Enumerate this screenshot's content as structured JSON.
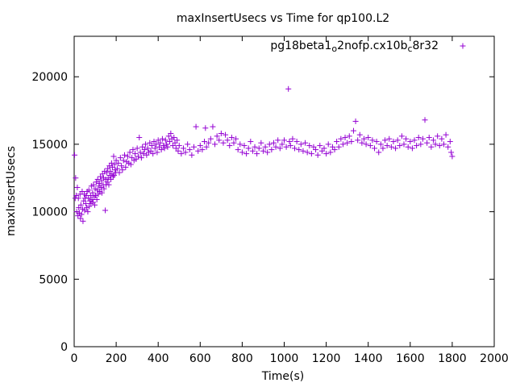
{
  "chart_data": {
    "type": "scatter",
    "title": "maxInsertUsecs vs Time for qp100.L2",
    "xlabel": "Time(s)",
    "ylabel": "maxInsertUsecs",
    "xlim": [
      0,
      2000
    ],
    "ylim": [
      0,
      23000
    ],
    "x_ticks": [
      0,
      200,
      400,
      600,
      800,
      1000,
      1200,
      1400,
      1600,
      1800,
      2000
    ],
    "y_ticks": [
      0,
      5000,
      10000,
      15000,
      20000
    ],
    "grid": false,
    "legend_position": "top-right",
    "marker": "plus",
    "colors": {
      "series": "#9400d3",
      "axis": "#000000"
    },
    "series": [
      {
        "name": "pg18beta1_o2nofp.cx10b_c8r32",
        "legend_parts": [
          {
            "text": "pg18beta1",
            "sub": false
          },
          {
            "text": "o",
            "sub": true
          },
          {
            "text": "2nofp.cx10b",
            "sub": false
          },
          {
            "text": "c",
            "sub": true
          },
          {
            "text": "8r32",
            "sub": false
          }
        ],
        "points": [
          [
            2,
            14200
          ],
          [
            5,
            11000
          ],
          [
            7,
            12500
          ],
          [
            10,
            11200
          ],
          [
            12,
            10000
          ],
          [
            15,
            11800
          ],
          [
            18,
            9700
          ],
          [
            20,
            11000
          ],
          [
            22,
            10300
          ],
          [
            25,
            9900
          ],
          [
            28,
            11300
          ],
          [
            30,
            9500
          ],
          [
            32,
            10500
          ],
          [
            35,
            9800
          ],
          [
            38,
            11500
          ],
          [
            40,
            10200
          ],
          [
            42,
            9300
          ],
          [
            45,
            10800
          ],
          [
            48,
            11300
          ],
          [
            50,
            10100
          ],
          [
            52,
            11000
          ],
          [
            55,
            10600
          ],
          [
            58,
            11200
          ],
          [
            60,
            10300
          ],
          [
            62,
            11500
          ],
          [
            65,
            10000
          ],
          [
            68,
            11000
          ],
          [
            70,
            11600
          ],
          [
            72,
            10400
          ],
          [
            75,
            10800
          ],
          [
            78,
            11200
          ],
          [
            80,
            10600
          ],
          [
            82,
            11900
          ],
          [
            85,
            10900
          ],
          [
            88,
            11400
          ],
          [
            90,
            10700
          ],
          [
            92,
            12000
          ],
          [
            95,
            11100
          ],
          [
            98,
            10500
          ],
          [
            100,
            11700
          ],
          [
            102,
            11200
          ],
          [
            105,
            12200
          ],
          [
            108,
            10900
          ],
          [
            110,
            11600
          ],
          [
            112,
            12400
          ],
          [
            115,
            11300
          ],
          [
            118,
            11900
          ],
          [
            120,
            12100
          ],
          [
            122,
            11500
          ],
          [
            125,
            12600
          ],
          [
            128,
            11800
          ],
          [
            130,
            12300
          ],
          [
            132,
            11400
          ],
          [
            135,
            12800
          ],
          [
            138,
            12000
          ],
          [
            140,
            12500
          ],
          [
            142,
            11700
          ],
          [
            145,
            13000
          ],
          [
            148,
            10100
          ],
          [
            150,
            12400
          ],
          [
            152,
            12000
          ],
          [
            155,
            12900
          ],
          [
            158,
            12200
          ],
          [
            160,
            13200
          ],
          [
            162,
            12500
          ],
          [
            165,
            12000
          ],
          [
            168,
            13400
          ],
          [
            170,
            12700
          ],
          [
            172,
            13000
          ],
          [
            175,
            12400
          ],
          [
            178,
            13600
          ],
          [
            180,
            12800
          ],
          [
            182,
            13300
          ],
          [
            185,
            12600
          ],
          [
            188,
            14100
          ],
          [
            190,
            12700
          ],
          [
            192,
            13500
          ],
          [
            195,
            13100
          ],
          [
            198,
            12900
          ],
          [
            200,
            13800
          ],
          [
            205,
            13200
          ],
          [
            210,
            13600
          ],
          [
            215,
            12900
          ],
          [
            220,
            14000
          ],
          [
            225,
            13400
          ],
          [
            230,
            13100
          ],
          [
            235,
            13800
          ],
          [
            240,
            14200
          ],
          [
            245,
            13300
          ],
          [
            250,
            13700
          ],
          [
            255,
            14100
          ],
          [
            260,
            13600
          ],
          [
            265,
            14400
          ],
          [
            270,
            13500
          ],
          [
            275,
            14000
          ],
          [
            280,
            14600
          ],
          [
            285,
            13800
          ],
          [
            290,
            14300
          ],
          [
            295,
            13900
          ],
          [
            300,
            14700
          ],
          [
            305,
            14100
          ],
          [
            310,
            15500
          ],
          [
            315,
            14400
          ],
          [
            320,
            14000
          ],
          [
            325,
            14800
          ],
          [
            330,
            14300
          ],
          [
            335,
            14600
          ],
          [
            340,
            15000
          ],
          [
            345,
            14200
          ],
          [
            350,
            14700
          ],
          [
            355,
            14400
          ],
          [
            360,
            15100
          ],
          [
            365,
            14500
          ],
          [
            370,
            14900
          ],
          [
            375,
            14300
          ],
          [
            380,
            15200
          ],
          [
            385,
            14700
          ],
          [
            390,
            15000
          ],
          [
            395,
            14400
          ],
          [
            400,
            15300
          ],
          [
            405,
            14800
          ],
          [
            410,
            15100
          ],
          [
            415,
            14600
          ],
          [
            420,
            15400
          ],
          [
            425,
            14900
          ],
          [
            430,
            14700
          ],
          [
            435,
            15300
          ],
          [
            440,
            15000
          ],
          [
            445,
            14800
          ],
          [
            450,
            15600
          ],
          [
            455,
            15200
          ],
          [
            460,
            15800
          ],
          [
            465,
            15400
          ],
          [
            470,
            14900
          ],
          [
            475,
            15500
          ],
          [
            480,
            15100
          ],
          [
            485,
            14700
          ],
          [
            490,
            15300
          ],
          [
            495,
            14500
          ],
          [
            500,
            14900
          ],
          [
            510,
            14300
          ],
          [
            520,
            14700
          ],
          [
            530,
            14400
          ],
          [
            540,
            15000
          ],
          [
            550,
            14600
          ],
          [
            560,
            14200
          ],
          [
            570,
            14800
          ],
          [
            580,
            16300
          ],
          [
            590,
            14500
          ],
          [
            600,
            14900
          ],
          [
            610,
            14600
          ],
          [
            620,
            15200
          ],
          [
            625,
            16200
          ],
          [
            630,
            14800
          ],
          [
            640,
            15100
          ],
          [
            650,
            15400
          ],
          [
            660,
            16300
          ],
          [
            670,
            15000
          ],
          [
            680,
            15600
          ],
          [
            690,
            15300
          ],
          [
            700,
            15800
          ],
          [
            710,
            15100
          ],
          [
            720,
            15700
          ],
          [
            730,
            15300
          ],
          [
            740,
            14900
          ],
          [
            750,
            15500
          ],
          [
            760,
            15100
          ],
          [
            770,
            15400
          ],
          [
            780,
            14600
          ],
          [
            790,
            15000
          ],
          [
            800,
            14400
          ],
          [
            810,
            14900
          ],
          [
            820,
            14300
          ],
          [
            830,
            14700
          ],
          [
            840,
            15200
          ],
          [
            850,
            14500
          ],
          [
            860,
            14800
          ],
          [
            870,
            14300
          ],
          [
            880,
            14700
          ],
          [
            890,
            15100
          ],
          [
            900,
            14500
          ],
          [
            910,
            14800
          ],
          [
            920,
            14400
          ],
          [
            930,
            15000
          ],
          [
            940,
            14600
          ],
          [
            950,
            15100
          ],
          [
            960,
            14800
          ],
          [
            970,
            15300
          ],
          [
            980,
            14700
          ],
          [
            990,
            15000
          ],
          [
            1000,
            15300
          ],
          [
            1010,
            14800
          ],
          [
            1020,
            19100
          ],
          [
            1025,
            15200
          ],
          [
            1030,
            14900
          ],
          [
            1040,
            15400
          ],
          [
            1050,
            14700
          ],
          [
            1060,
            15200
          ],
          [
            1070,
            14600
          ],
          [
            1080,
            15000
          ],
          [
            1090,
            14500
          ],
          [
            1100,
            15100
          ],
          [
            1110,
            14400
          ],
          [
            1120,
            14900
          ],
          [
            1130,
            14300
          ],
          [
            1140,
            14800
          ],
          [
            1150,
            14600
          ],
          [
            1160,
            14200
          ],
          [
            1170,
            14900
          ],
          [
            1180,
            14500
          ],
          [
            1190,
            14700
          ],
          [
            1200,
            14300
          ],
          [
            1210,
            15000
          ],
          [
            1220,
            14400
          ],
          [
            1230,
            14800
          ],
          [
            1240,
            14600
          ],
          [
            1250,
            15200
          ],
          [
            1260,
            14800
          ],
          [
            1270,
            15400
          ],
          [
            1280,
            15000
          ],
          [
            1290,
            15500
          ],
          [
            1300,
            15100
          ],
          [
            1310,
            15600
          ],
          [
            1320,
            15200
          ],
          [
            1330,
            16000
          ],
          [
            1340,
            16700
          ],
          [
            1350,
            15300
          ],
          [
            1360,
            15700
          ],
          [
            1370,
            15100
          ],
          [
            1380,
            15400
          ],
          [
            1390,
            15000
          ],
          [
            1400,
            15500
          ],
          [
            1410,
            14900
          ],
          [
            1420,
            15300
          ],
          [
            1430,
            14700
          ],
          [
            1440,
            15200
          ],
          [
            1450,
            14400
          ],
          [
            1460,
            15000
          ],
          [
            1470,
            14700
          ],
          [
            1480,
            15300
          ],
          [
            1490,
            14900
          ],
          [
            1500,
            15400
          ],
          [
            1510,
            14800
          ],
          [
            1520,
            15200
          ],
          [
            1530,
            14700
          ],
          [
            1540,
            15300
          ],
          [
            1550,
            14900
          ],
          [
            1560,
            15600
          ],
          [
            1570,
            15000
          ],
          [
            1580,
            15400
          ],
          [
            1590,
            14800
          ],
          [
            1600,
            15200
          ],
          [
            1610,
            14700
          ],
          [
            1620,
            15300
          ],
          [
            1630,
            14900
          ],
          [
            1640,
            15500
          ],
          [
            1650,
            15000
          ],
          [
            1660,
            15400
          ],
          [
            1670,
            16800
          ],
          [
            1680,
            15100
          ],
          [
            1690,
            15500
          ],
          [
            1700,
            14800
          ],
          [
            1710,
            15300
          ],
          [
            1720,
            15000
          ],
          [
            1730,
            15600
          ],
          [
            1740,
            14900
          ],
          [
            1750,
            15400
          ],
          [
            1760,
            15000
          ],
          [
            1770,
            15700
          ],
          [
            1780,
            14800
          ],
          [
            1790,
            15200
          ],
          [
            1795,
            14400
          ],
          [
            1800,
            14100
          ]
        ]
      }
    ]
  }
}
